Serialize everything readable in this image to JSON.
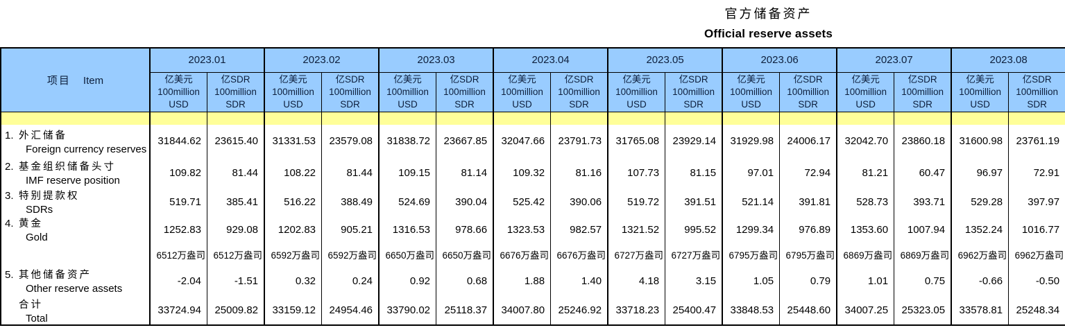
{
  "title": {
    "zh": "官方储备资产",
    "en": "Official reserve assets"
  },
  "colors": {
    "header_bg": "#99CCFF",
    "stripe_bg": "#FFFF99",
    "header_text": "#0d1f3c"
  },
  "table": {
    "item_header": {
      "zh": "项目",
      "en": "Item"
    },
    "months": [
      "2023.01",
      "2023.02",
      "2023.03",
      "2023.04",
      "2023.05",
      "2023.06",
      "2023.07",
      "2023.08"
    ],
    "unit_usd": {
      "zh": "亿美元",
      "scale": "100million",
      "code": "USD"
    },
    "unit_sdr": {
      "zh": "亿SDR",
      "scale": "100million",
      "code": "SDR"
    },
    "rows": [
      {
        "type": "normal",
        "no": "1.",
        "zh": "外汇储备",
        "en": "Foreign currency reserves",
        "values": [
          "31844.62",
          "23615.40",
          "31331.53",
          "23579.08",
          "31838.72",
          "23667.85",
          "32047.66",
          "23791.73",
          "31765.08",
          "23929.14",
          "31929.98",
          "24006.17",
          "32042.70",
          "23860.18",
          "31600.98",
          "23761.19"
        ]
      },
      {
        "type": "normal",
        "no": "2.",
        "zh": "基金组织储备头寸",
        "en": "IMF reserve position",
        "values": [
          "109.82",
          "81.44",
          "108.22",
          "81.44",
          "109.15",
          "81.14",
          "109.32",
          "81.16",
          "107.73",
          "81.15",
          "97.01",
          "72.94",
          "81.21",
          "60.47",
          "96.97",
          "72.91"
        ]
      },
      {
        "type": "normal",
        "no": "3.",
        "zh": "特别提款权",
        "en": "SDRs",
        "values": [
          "519.71",
          "385.41",
          "516.22",
          "388.49",
          "524.69",
          "390.04",
          "525.42",
          "390.06",
          "519.72",
          "391.51",
          "521.14",
          "391.81",
          "528.73",
          "393.71",
          "529.28",
          "397.97"
        ]
      },
      {
        "type": "normal",
        "no": "4.",
        "zh": "黄金",
        "en": "Gold",
        "values": [
          "1252.83",
          "929.08",
          "1202.83",
          "905.21",
          "1316.53",
          "978.66",
          "1323.53",
          "982.57",
          "1321.52",
          "995.52",
          "1299.34",
          "976.89",
          "1353.60",
          "1007.94",
          "1352.24",
          "1016.77"
        ]
      },
      {
        "type": "oz",
        "no": "",
        "zh": "",
        "en": "",
        "values": [
          "6512万盎司",
          "6512万盎司",
          "6592万盎司",
          "6592万盎司",
          "6650万盎司",
          "6650万盎司",
          "6676万盎司",
          "6676万盎司",
          "6727万盎司",
          "6727万盎司",
          "6795万盎司",
          "6795万盎司",
          "6869万盎司",
          "6869万盎司",
          "6962万盎司",
          "6962万盎司"
        ]
      },
      {
        "type": "normal",
        "no": "5.",
        "zh": "其他储备资产",
        "en": "Other reserve assets",
        "values": [
          "-2.04",
          "-1.51",
          "0.32",
          "0.24",
          "0.92",
          "0.68",
          "1.88",
          "1.40",
          "4.18",
          "3.15",
          "1.05",
          "0.79",
          "1.01",
          "0.75",
          "-0.66",
          "-0.50"
        ]
      },
      {
        "type": "total",
        "no": "",
        "zh": "合计",
        "en": "Total",
        "values": [
          "33724.94",
          "25009.82",
          "33159.12",
          "24954.46",
          "33790.02",
          "25118.37",
          "34007.80",
          "25246.92",
          "33718.23",
          "25400.47",
          "33848.53",
          "25448.60",
          "34007.25",
          "25323.05",
          "33578.81",
          "25248.34"
        ]
      }
    ]
  }
}
